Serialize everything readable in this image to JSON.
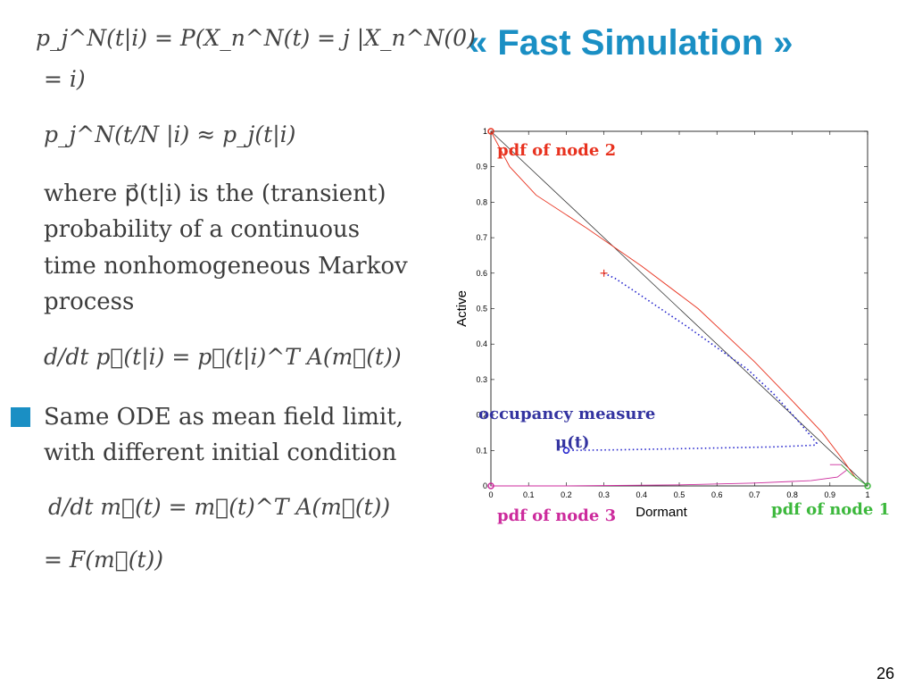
{
  "slide": {
    "title": "« Fast Simulation »",
    "page_number": "26",
    "eq1_line1": "p_j^N(t|i) = P(X_n^N(t) = j |X_n^N(0)",
    "eq1_line2": "= i)",
    "eq2": "p_j^N(t/N |i) ≈ p_j(t|i)",
    "para_line1": "where  p⃗(t|i) is the (transient)",
    "para_line2": "probability of a continuous",
    "para_line3": "time nonhomogeneous Markov",
    "para_line4": "process",
    "ode1": "d/dt p⃗(t|i) = p⃗(t|i)^T A(m⃗(t))",
    "bullet_line1": "Same ODE as mean field limit,",
    "bullet_line2": "with different initial condition",
    "ode2_line1": "d/dt m⃗(t) = m⃗(t)^T A(m⃗(t))",
    "ode2_line2": "= F(m⃗(t))"
  },
  "colors": {
    "accent": "#1a8fc4",
    "red": "#e8321f",
    "green": "#3cb83c",
    "magenta": "#cc2a9c",
    "navy": "#3333a0"
  },
  "chart_data": {
    "type": "line",
    "xlabel": "Dormant",
    "ylabel": "Active",
    "xlim": [
      0,
      1
    ],
    "ylim": [
      0,
      1
    ],
    "x_ticks": [
      "0",
      "0.1",
      "0.2",
      "0.3",
      "0.4",
      "0.5",
      "0.6",
      "0.7",
      "0.8",
      "0.9",
      "1"
    ],
    "y_ticks": [
      "0",
      "0.1",
      "0.2",
      "0.3",
      "0.4",
      "0.5",
      "0.6",
      "0.7",
      "0.8",
      "0.9",
      "1"
    ],
    "annotations": {
      "node2": "pdf of node 2",
      "node1": "pdf of node 1",
      "node3": "pdf of node 3",
      "occupancy": "occupancy measure",
      "mu": "μ(t)"
    },
    "series": [
      {
        "name": "pdf of node 2",
        "color": "#e8321f",
        "x": [
          0.0,
          0.05,
          0.12,
          0.25,
          0.4,
          0.55,
          0.7,
          0.8,
          0.88,
          0.93,
          0.97
        ],
        "y": [
          1.0,
          0.9,
          0.82,
          0.73,
          0.62,
          0.5,
          0.35,
          0.24,
          0.15,
          0.08,
          0.02
        ]
      },
      {
        "name": "pdf of node 3",
        "color": "#cc2a9c",
        "x": [
          0.0,
          0.2,
          0.5,
          0.7,
          0.85,
          0.92,
          0.945,
          0.93,
          0.9
        ],
        "y": [
          0.0,
          0.0,
          0.003,
          0.008,
          0.015,
          0.025,
          0.045,
          0.06,
          0.06
        ]
      },
      {
        "name": "pdf of node 1",
        "color": "#3cb83c",
        "x": [
          0.93,
          0.96,
          1.0
        ],
        "y": [
          0.06,
          0.03,
          0.0
        ]
      },
      {
        "name": "occupancy measure",
        "color": "#2222cc",
        "x": [
          0.3,
          0.33,
          0.38,
          0.45,
          0.52,
          0.6,
          0.68,
          0.75,
          0.81,
          0.85,
          0.865,
          0.86,
          0.82,
          0.75,
          0.65,
          0.55,
          0.45,
          0.35,
          0.27,
          0.2
        ],
        "y": [
          0.6,
          0.585,
          0.55,
          0.5,
          0.45,
          0.39,
          0.33,
          0.26,
          0.19,
          0.14,
          0.12,
          0.115,
          0.113,
          0.11,
          0.108,
          0.106,
          0.104,
          0.102,
          0.101,
          0.1
        ]
      }
    ],
    "points": [
      {
        "x": 0.0,
        "y": 1.0,
        "color": "#e8321f"
      },
      {
        "x": 1.0,
        "y": 0.0,
        "color": "#3cb83c"
      },
      {
        "x": 0.0,
        "y": 0.0,
        "color": "#cc2a9c"
      },
      {
        "x": 0.3,
        "y": 0.6,
        "color": "#e8321f",
        "marker": "plus"
      },
      {
        "x": 0.2,
        "y": 0.1,
        "color": "#2222cc"
      }
    ]
  }
}
